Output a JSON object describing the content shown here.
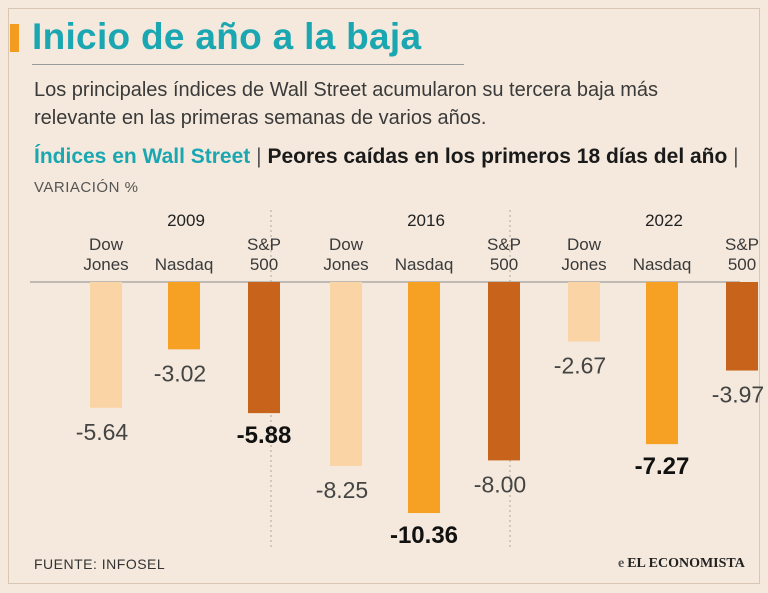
{
  "header": {
    "title": "Inicio de año a la baja",
    "subtitle": "Los principales índices de Wall Street acumularon su tercera baja más relevante en las primeras semanas de varios años.",
    "chart_heading": "Índices en Wall Street",
    "heading_separator": "|",
    "chart_subheading": "Peores caídas en los primeros 18 días del año",
    "unit_separator": "|",
    "unit_label": "VARIACIÓN %"
  },
  "footer": {
    "source": "FUENTE: INFOSEL",
    "logo_mark": "e",
    "logo_text": "EL ECONOMISTA"
  },
  "colors": {
    "dow": "#fbd4a6",
    "nasdaq": "#f6a024",
    "sp500": "#c8631b",
    "title": "#1aa7b2"
  },
  "chart_data": {
    "type": "bar",
    "title": "Peores caídas en los primeros 18 días del año",
    "ylabel": "Variación %",
    "ylim": [
      -10.36,
      0
    ],
    "grid": false,
    "groups": [
      "2009",
      "2016",
      "2022"
    ],
    "series": [
      {
        "name": "Dow Jones",
        "label_lines": [
          "Dow",
          "Jones"
        ],
        "values": [
          -5.64,
          -8.25,
          -2.67
        ]
      },
      {
        "name": "Nasdaq",
        "label_lines": [
          "Nasdaq"
        ],
        "values": [
          -3.02,
          -10.36,
          -7.27
        ]
      },
      {
        "name": "S&P 500",
        "label_lines": [
          "S&P",
          "500"
        ],
        "values": [
          -5.88,
          -8.0,
          -3.97
        ]
      }
    ],
    "labels": [
      [
        "-5.64",
        "-3.02",
        "-5.88"
      ],
      [
        "-8.25",
        "-10.36",
        "-8.00"
      ],
      [
        "-2.67",
        "-7.27",
        "-3.97"
      ]
    ],
    "bold_labels": [
      "-5.88",
      "-10.36",
      "-7.27"
    ]
  }
}
